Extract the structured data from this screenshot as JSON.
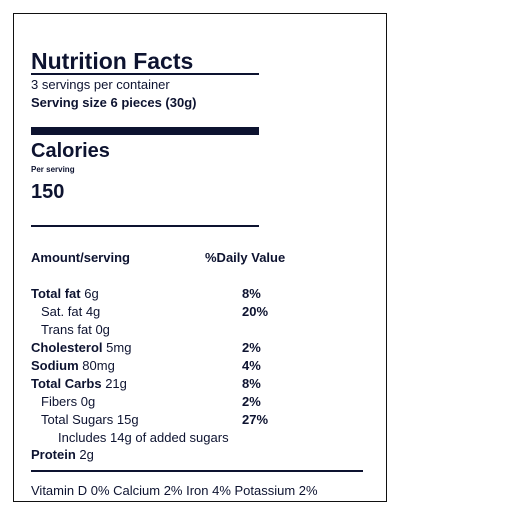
{
  "header": {
    "title": "Nutrition Facts",
    "servings": "3 servings per container",
    "serving_size": "Serving size 6 pieces (30g)"
  },
  "calories": {
    "label": "Calories",
    "per": "Per serving",
    "value": "150"
  },
  "table": {
    "header": [
      "Amount/serving",
      "%Daily Value"
    ],
    "rows": [
      [
        "Total fat",
        "6g",
        "8%"
      ],
      [
        "Sat. fat",
        "4g",
        "20%"
      ],
      [
        "Trans fat",
        "0g"
      ],
      [
        "Cholesterol",
        "5mg",
        "2%"
      ],
      [
        "Sodium",
        "80mg",
        "4%"
      ],
      [
        "Total Carbs",
        "21g",
        "8%"
      ],
      [
        "Fibers",
        "0g",
        "2%"
      ],
      [
        "Total Sugars",
        "15g",
        "27%"
      ],
      [
        "Includes 14g of added sugars"
      ],
      [
        "Protein",
        "2g"
      ]
    ]
  },
  "footer": "Vitamin D 0% Calcium 2% Iron 4% Potassium 2%"
}
